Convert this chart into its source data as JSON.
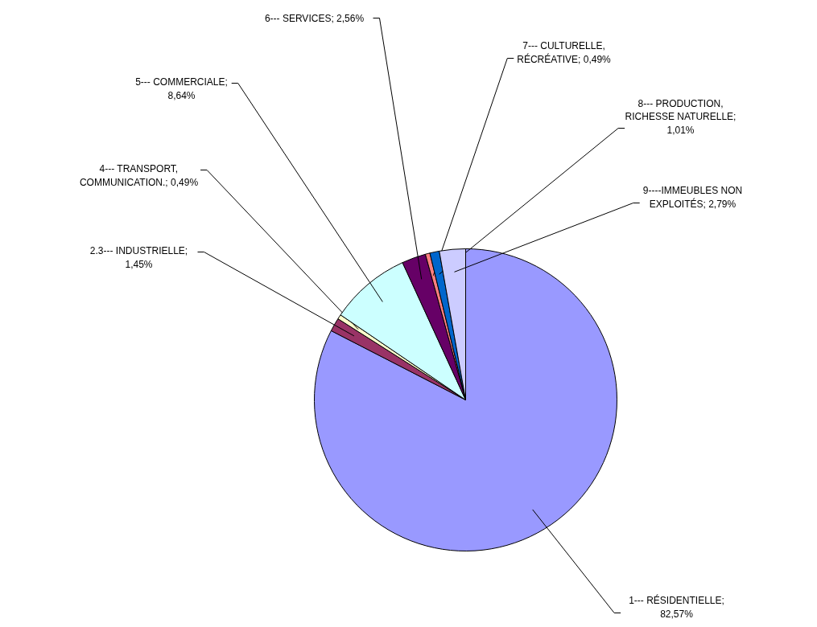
{
  "chart_data": {
    "type": "pie",
    "categories": [
      "1--- RÉSIDENTIELLE; 82,57%",
      "2.3--- INDUSTRIELLE; 1,45%",
      "4--- TRANSPORT, COMMUNICATION.; 0,49%",
      "5--- COMMERCIALE; 8,64%",
      "6--- SERVICES; 2,56%",
      "7--- CULTURELLE, RÉCRÉATIVE; 0,49%",
      "8--- PRODUCTION, RICHESSE NATURELLE; 1,01%",
      "9----IMMEUBLES NON EXPLOITÉS; 2,79%"
    ],
    "values": [
      82.57,
      1.45,
      0.49,
      8.64,
      2.56,
      0.49,
      1.01,
      2.79
    ],
    "colors": [
      "#9999ff",
      "#993366",
      "#ffffcc",
      "#ccffff",
      "#660066",
      "#ff8080",
      "#0066cc",
      "#ccccff"
    ]
  }
}
